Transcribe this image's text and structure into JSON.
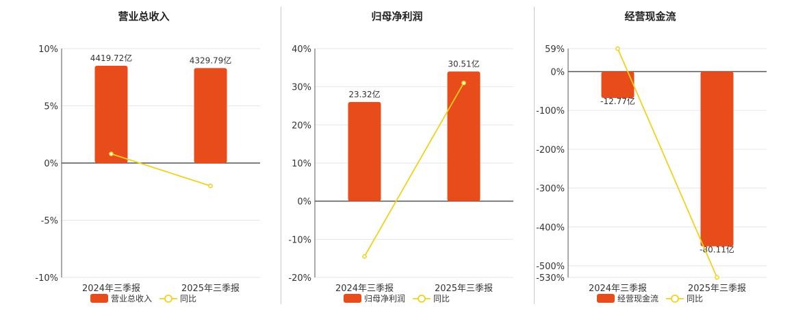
{
  "colors": {
    "bar": "#e84c1b",
    "line": "#f2d01c",
    "grid": "#e6e6e6",
    "axis": "#555555",
    "text": "#333333"
  },
  "chart_data": [
    {
      "type": "bar",
      "title": "营业总收入",
      "categories": [
        "2024年三季报",
        "2025年三季报"
      ],
      "yticks": [
        "10%",
        "5%",
        "0%",
        "-5%",
        "-10%"
      ],
      "ylim": [
        -10,
        10
      ],
      "bar_values": [
        8.5,
        8.3
      ],
      "bar_labels": [
        "4419.72亿",
        "4329.79亿"
      ],
      "line_values": [
        0.8,
        -2.0
      ],
      "legend": [
        "营业总收入",
        "同比"
      ]
    },
    {
      "type": "bar",
      "title": "归母净利润",
      "categories": [
        "2024年三季报",
        "2025年三季报"
      ],
      "yticks": [
        "40%",
        "30%",
        "20%",
        "10%",
        "0%",
        "-10%",
        "-20%"
      ],
      "ylim": [
        -20,
        40
      ],
      "bar_values": [
        26.0,
        34.0
      ],
      "bar_labels": [
        "23.32亿",
        "30.51亿"
      ],
      "line_values": [
        -14.5,
        31.0
      ],
      "legend": [
        "归母净利润",
        "同比"
      ]
    },
    {
      "type": "bar",
      "title": "经营现金流",
      "categories": [
        "2024年三季报",
        "2025年三季报"
      ],
      "yticks": [
        "59%",
        "0%",
        "-100%",
        "-200%",
        "-300%",
        "-400%",
        "-500%",
        "-530%"
      ],
      "ylim": [
        -530,
        59
      ],
      "bar_values": [
        -68,
        -450
      ],
      "bar_labels": [
        "-12.77亿",
        "-80.11亿"
      ],
      "line_values": [
        59,
        -530
      ],
      "legend": [
        "经营现金流",
        "同比"
      ]
    }
  ]
}
